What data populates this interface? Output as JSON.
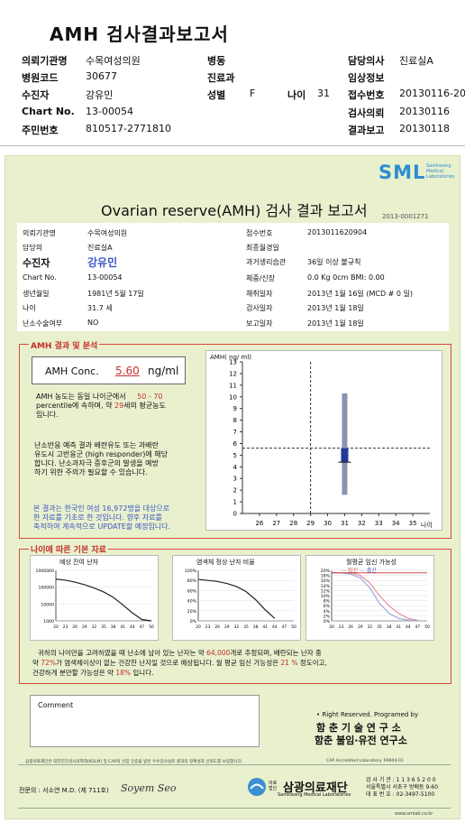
{
  "header": {
    "title": "AMH 검사결과보고서",
    "rows": [
      {
        "l1": "의뢰기관명",
        "v1": "수목여성의원",
        "l2": "병동",
        "v2": "",
        "l3": "담당의사",
        "v3": "진료실A"
      },
      {
        "l1": "병원코드",
        "v1": "30677",
        "l2": "진료과",
        "v2": "",
        "l3": "임상정보",
        "v3": ""
      },
      {
        "l1": "수진자",
        "v1": "강유민",
        "l2": "성별",
        "v2": "F",
        "l2b": "나이",
        "v2b": "31",
        "l3": "접수번호",
        "v3": "20130116-20"
      },
      {
        "l1": "Chart No.",
        "v1": "13-00054",
        "l2": "",
        "v2": "",
        "l3": "검사의뢰",
        "v3": "20130116"
      },
      {
        "l1": "주민번호",
        "v1": "810517-2771810",
        "l2": "",
        "v2": "",
        "l3": "결과보고",
        "v3": "20130118"
      }
    ]
  },
  "report": {
    "logo": "SML",
    "logo_sub1": "Samkwang",
    "logo_sub2": "Medical",
    "logo_sub3": "Laboratories",
    "title": "Ovarian reserve(AMH) 검사 결과 보고서",
    "doc_no": "2013-0001271",
    "left_info": [
      {
        "label": "의뢰기관명",
        "value": "수목여성의원"
      },
      {
        "label": "담당의",
        "value": "진료실A"
      },
      {
        "label": "수진자",
        "value": "강유민"
      },
      {
        "label": "Chart No.",
        "value": "13-00054"
      },
      {
        "label": "생년월일",
        "value": "1981년 5월 17일"
      },
      {
        "label": "나이",
        "value": "31.7 세"
      },
      {
        "label": "난소수술여부",
        "value": "NO"
      }
    ],
    "right_info": [
      {
        "label": "접수번호",
        "value": "2013011620904"
      },
      {
        "label": "최종월경일",
        "value": ""
      },
      {
        "label": "과거생리습관",
        "value": "36일 이상 불규칙"
      },
      {
        "label": "체중/신장",
        "value": "0.0 Kg       0cm   BMI:  0.00"
      },
      {
        "label": "채취일자",
        "value": "2013년 1월 16일   (MCD # 0 일)"
      },
      {
        "label": "검사일자",
        "value": "2013년 1월 18일"
      },
      {
        "label": "보고일자",
        "value": "2013년 1월 18일"
      }
    ],
    "amh_section": {
      "label": "AMH 결과 및 분석",
      "conc_label": "AMH Conc.",
      "conc_value": "5.60",
      "conc_unit": "ng/ml",
      "text1_a": "AMH 농도는 동일 나이군에서",
      "text1_range": "50 - 70",
      "text1_b": "percentile에 속하며, 약",
      "text1_age": "29",
      "text1_c": "세의 평균농도",
      "text1_d": "입니다.",
      "text2": [
        "난소반응 예측 결과 배란유도 또는 과배란",
        "유도시 고반응군 (high responder)에 해당",
        "합니다. 난소과자극 증후군의 발생을 예방",
        "하기 위한 주의가 필요할 수 있습니다."
      ],
      "text3": [
        "본 결과는 한국인 여성 16,972명을 대상으로",
        "한 자료를 기초로 한 것입니다. 향후 자료를",
        "축적하여 계속적으로 UPDATE할 예정입니다."
      ]
    },
    "main_chart": {
      "ylabel": "AMH( ng/ ml)",
      "xlabel": "나이"
    },
    "basic_section": {
      "label": "나이에 따른 기본 자료",
      "chart1_title": "예상 잔여 난자",
      "chart2_title": "염색체 정상 난자 비율",
      "chart3_title": "월평균 임신 가능성",
      "chart3_legend_a": "임신",
      "chart3_legend_b": "출산",
      "summary_a": "귀하의 나이만을 고려하였을 때 난소에 남아 있는 난자는 약",
      "summary_eggs": "64,000",
      "summary_b": "개로 추정되며, 배란되는 난자 중",
      "summary_c": "약",
      "summary_pct": "72%",
      "summary_d": "가 염색체이상이 없는 건강한 난자일 것으로 예상됩니다. 월 평균 임신 가능성은",
      "summary_preg": "21 %",
      "summary_e": "정도이고,",
      "summary_f": "건강하게 분만할 가능성은 약",
      "summary_birth": "18%",
      "summary_g": "입니다."
    },
    "comment_label": "Comment",
    "rights": "• Right Reserved. Programed by",
    "inst1": "함 춘  기 술  연 구 소",
    "inst2": "함춘 불임·유전 연구소",
    "fine_print": "삼광의료재단은 대한진단검사의학회(KSLM) 및 CAP의 신임 인증을 받은 우수검사실로 결과의 정확성과 신뢰도를 보증합니다.",
    "cap_text": "CAP  Accredited  Laboratory.  69944-01",
    "signer_label": "전문의 : 서소연 M.D. (제 711호)",
    "signature": "Soyem Seo",
    "foundation_small": "의료법인",
    "foundation": "삼광의료재단",
    "foundation_en": "Samkwang Medical Laboratories",
    "contact1": "검 사 기 관 : 1 1 3 6 5 2 0 0",
    "contact2": "서울특별시 서초구 방배동 9-60",
    "contact3": "대 표 번 호 : 02-3497-5100",
    "website": "www.smlab.co.kr"
  },
  "chart_data": [
    {
      "type": "scatter",
      "title": "",
      "xlabel": "나이",
      "ylabel": "AMH( ng/ ml)",
      "x_ticks": [
        26,
        27,
        28,
        29,
        30,
        31,
        32,
        33,
        34,
        35
      ],
      "y_ticks": [
        0,
        1,
        2,
        3,
        4,
        5,
        6,
        7,
        8,
        9,
        10,
        11,
        12,
        13
      ],
      "xlim": [
        25,
        36
      ],
      "ylim": [
        0,
        13
      ],
      "range_bar": {
        "x": 31,
        "low": 1.6,
        "high": 10.3
      },
      "box": {
        "x": 31,
        "low": 4.4,
        "high": 5.6
      },
      "point": {
        "x": 31,
        "y": 5.6
      },
      "ref_x": 29,
      "ref_y": 5.6
    },
    {
      "type": "line",
      "title": "예상 잔여 난자",
      "x_ticks": [
        20,
        23,
        26,
        29,
        32,
        35,
        38,
        41,
        44,
        47,
        50
      ],
      "y_ticks": [
        "1000000",
        "100000",
        "10000",
        "1000"
      ],
      "x": [
        20,
        23,
        26,
        29,
        32,
        35,
        38,
        41,
        44,
        47,
        50
      ],
      "y": [
        300000,
        260000,
        200000,
        140000,
        90000,
        52000,
        25000,
        9000,
        3000,
        1200,
        1000
      ]
    },
    {
      "type": "line",
      "title": "염색체 정상 난자 비율",
      "x_ticks": [
        20,
        23,
        26,
        29,
        32,
        35,
        38,
        41,
        44,
        47,
        50
      ],
      "y_ticks": [
        "100%",
        "80%",
        "60%",
        "40%",
        "20%",
        "0%"
      ],
      "x": [
        20,
        23,
        26,
        29,
        32,
        35,
        38,
        41,
        44
      ],
      "y": [
        82,
        80,
        78,
        74,
        68,
        58,
        42,
        22,
        5
      ]
    },
    {
      "type": "line",
      "title": "월평균 임신 가능성",
      "x_ticks": [
        20,
        23,
        26,
        29,
        32,
        35,
        38,
        41,
        44,
        47,
        50
      ],
      "y_ticks": [
        "20%",
        "18%",
        "16%",
        "14%",
        "12%",
        "10%",
        "8%",
        "6%",
        "4%",
        "2%",
        "0%"
      ],
      "series": [
        {
          "name": "임신",
          "x": [
            20,
            23,
            26,
            29,
            32,
            35,
            38,
            41,
            44,
            47
          ],
          "y": [
            19,
            19,
            19,
            18,
            15,
            10,
            6,
            3,
            1,
            0.3
          ]
        },
        {
          "name": "출산",
          "x": [
            20,
            23,
            26,
            29,
            32,
            35,
            38,
            41,
            44,
            47
          ],
          "y": [
            19,
            19,
            18.5,
            17,
            13,
            7,
            3,
            1,
            0.3,
            0.1
          ]
        }
      ],
      "reference_value": 19
    }
  ]
}
